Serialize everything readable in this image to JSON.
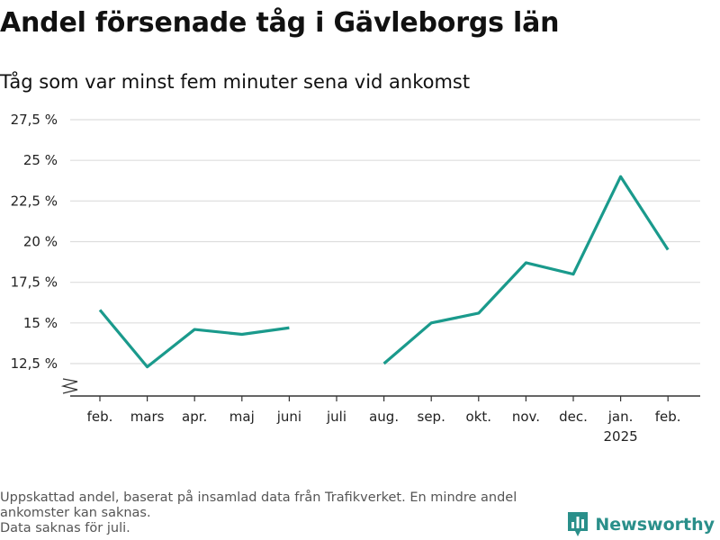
{
  "title": "Andel försenade tåg i Gävleborgs län",
  "subtitle": "Tåg som var minst fem minuter sena vid ankomst",
  "footnote": [
    "Uppskattad andel, baserat på insamlad data från Trafikverket. En mindre andel",
    "ankomster kan saknas.",
    "Data saknas för juli."
  ],
  "brand": {
    "name": "Newsworthy",
    "logo_icon": "bar-chart-icon"
  },
  "colors": {
    "line": "#1a9a8c",
    "grid": "#dddddd",
    "axis": "#333333",
    "brand": "#2a8f8a"
  },
  "chart_data": {
    "type": "line",
    "categories": [
      "feb.",
      "mars",
      "apr.",
      "maj",
      "juni",
      "juli",
      "aug.",
      "sep.",
      "okt.",
      "nov.",
      "dec.",
      "jan.",
      "feb."
    ],
    "year_label": {
      "category_index": 11,
      "text": "2025"
    },
    "series": [
      {
        "values": [
          15.8,
          12.3,
          14.6,
          14.3,
          14.7,
          null,
          12.5,
          15.0,
          15.6,
          18.7,
          18.0,
          24.0,
          19.5
        ]
      }
    ],
    "y_ticks": [
      12.5,
      15,
      17.5,
      20,
      22.5,
      25,
      27.5
    ],
    "y_tick_labels": [
      "12,5 %",
      "15 %",
      "17,5 %",
      "20 %",
      "22,5 %",
      "25 %",
      "27,5 %"
    ],
    "ylim": [
      12.5,
      27.5
    ],
    "y_axis_break": true,
    "grid": true,
    "xlabel": "",
    "ylabel": ""
  }
}
